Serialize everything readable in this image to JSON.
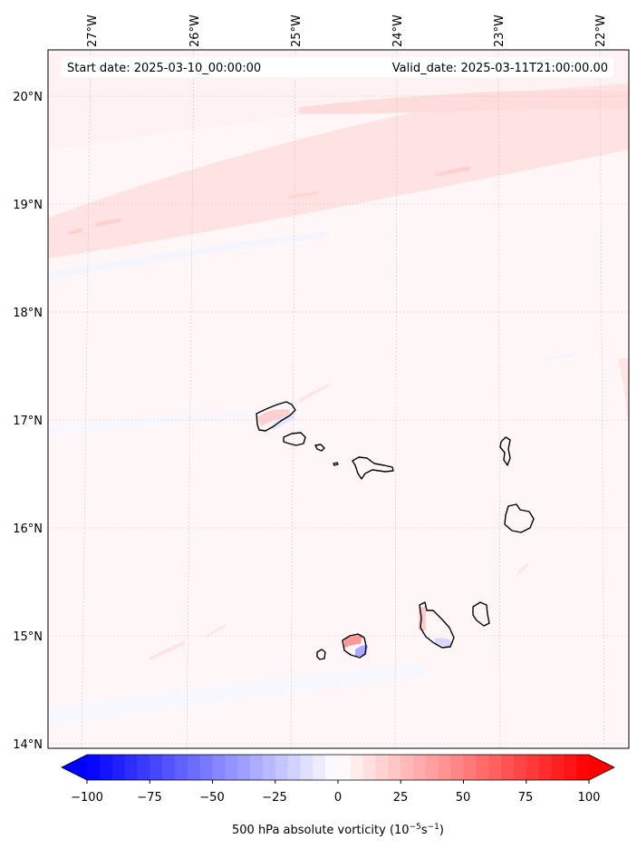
{
  "map": {
    "start_date": "Start date: 2025-03-10_00:00:00",
    "valid_date": "Valid_date: 2025-03-11T21:00:00.00",
    "longitude_labels": [
      "27°W",
      "26°W",
      "25°W",
      "24°W",
      "23°W",
      "22°W"
    ],
    "latitude_labels": [
      "20°N",
      "19°N",
      "18°N",
      "17°N",
      "16°N",
      "15°N",
      "14°N"
    ],
    "islands": [
      "Santo Antão",
      "São Vicente",
      "Santa Luzia",
      "São Nicolau",
      "Sal",
      "Boa Vista",
      "Maio",
      "Santiago",
      "Fogo",
      "Brava"
    ]
  },
  "colorbar": {
    "label_prefix": "500 hPa absolute vorticity (10",
    "label_exp1": "−5",
    "label_mid": "s",
    "label_exp2": "−1",
    "label_suffix": ")",
    "ticks": [
      "−100",
      "−75",
      "−50",
      "−25",
      "0",
      "25",
      "50",
      "75",
      "100"
    ],
    "min": -100,
    "max": 100,
    "extend": "both",
    "colormap": "bwr",
    "low_color": "#0000ff",
    "mid_color": "#ffffff",
    "high_color": "#ff0000"
  }
}
